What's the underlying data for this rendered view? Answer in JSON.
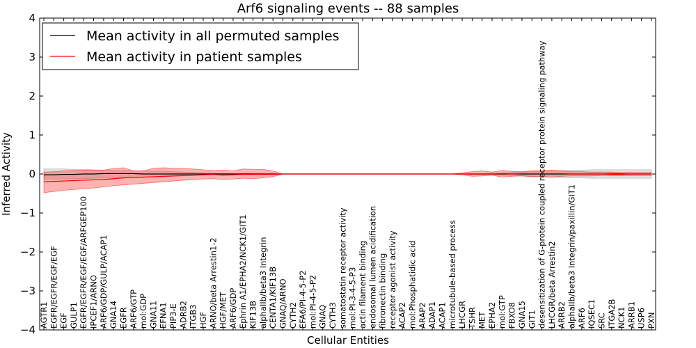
{
  "chart_data": {
    "type": "line",
    "title": "Arf6 signaling events -- 88 samples",
    "xlabel": "Cellular Entities",
    "ylabel": "Inferred Activity",
    "ylim": [
      -4,
      4
    ],
    "yticks": [
      "4",
      "3",
      "2",
      "1",
      "0",
      "−1",
      "−2",
      "−3",
      "−4"
    ],
    "grid": false,
    "legend_position": "top-left",
    "colors": {
      "permuted": "#000000",
      "patient": "#ff0000",
      "patient_band": "#ff0000",
      "permuted_band": "#aaaaaa"
    },
    "categories": [
      "AGTR1",
      "EGFR/EGFR/EGF/EGF",
      "EGF",
      "GULP1",
      "EGFR/EGFR/EGF/EGF/ARFGEP100",
      "IPCEF1/ARNO",
      "ARF6/GDP/GULP/ACAP1",
      "GNA14",
      "EGFR",
      "ARF6/GTP",
      "mol:GDP",
      "GNA11",
      "EFNA1",
      "PIP3-E",
      "ADRB2",
      "ITGB3",
      "HGF",
      "ARNO/beta Arrestin1-2",
      "HGF/MET",
      "ARF6/GDP",
      "Ephrin A1/EPHA2/NCK1/GIT1",
      "KIF13B",
      "alphaIIb/beta3 Integrin",
      "CENTA1/KIF13B",
      "GNAQ/ARNO",
      "CYTH2",
      "EFA6/PI-4-5-P2",
      "mol:PI-4-5-P2",
      "GNAQ",
      "CYTH3",
      "somatostatin receptor activity",
      "mol:PI-3-4-5-P3",
      "actin filament binding",
      "endosomal lumen acidification",
      "fibronectin binding",
      "receptor agonist activity",
      "ACAP2",
      "mol:Phosphatidic acid",
      "ARAP2",
      "ADAP1",
      "ACAP1",
      "microtubule-based process",
      "LHCGR",
      "TSHR",
      "MET",
      "EPHA2",
      "mol:GTP",
      "FBXO8",
      "GNA15",
      "GIT1",
      "desensitization of G-protein coupled receptor protein signaling pathway",
      "LHCGR/beta Arrestin2",
      "ARRB2",
      "alphaIIb/beta3 Integrin/paxillin/GIT1",
      "ARF6",
      "IQSEC1",
      "SRC",
      "ITGA2B",
      "NCK1",
      "ARRB1",
      "USP6",
      "PXN"
    ],
    "series": [
      {
        "name": "Mean activity in all permuted samples",
        "values": [
          -0.02,
          -0.02,
          -0.01,
          -0.01,
          0.0,
          0.0,
          0.01,
          0.01,
          0.01,
          0.01,
          0.0,
          0.0,
          0.0,
          0.0,
          0.0,
          0.0,
          0.0,
          0.0,
          0.0,
          0.0,
          0.0,
          0.0,
          0.0,
          0.0,
          0.0,
          0.0,
          0.0,
          0.0,
          0.0,
          0.0,
          0.0,
          0.0,
          0.0,
          0.0,
          0.0,
          0.0,
          0.0,
          0.0,
          0.0,
          0.0,
          0.0,
          0.0,
          0.0,
          0.0,
          0.0,
          0.0,
          0.0,
          0.0,
          0.0,
          0.0,
          0.0,
          0.0,
          0.0,
          0.0,
          0.0,
          0.0,
          0.0,
          0.0,
          0.0,
          0.0,
          0.0,
          0.0
        ],
        "upper": [
          0.13,
          0.13,
          0.13,
          0.12,
          0.12,
          0.11,
          0.1,
          0.09,
          0.09,
          0.08,
          0.08,
          0.07,
          0.07,
          0.06,
          0.05,
          0.04,
          0.03,
          0.02,
          0.02,
          0.01,
          0.01,
          0.01,
          0.0,
          0.0,
          0.0,
          0.0,
          0.0,
          0.0,
          0.0,
          0.0,
          0.0,
          0.0,
          0.0,
          0.0,
          0.0,
          0.0,
          0.0,
          0.0,
          0.0,
          0.0,
          0.0,
          0.0,
          0.0,
          0.01,
          0.01,
          0.02,
          0.03,
          0.04,
          0.05,
          0.06,
          0.07,
          0.08,
          0.09,
          0.1,
          0.1,
          0.11,
          0.11,
          0.11,
          0.11,
          0.11,
          0.11,
          0.11
        ],
        "lower": [
          -0.13,
          -0.13,
          -0.13,
          -0.12,
          -0.12,
          -0.11,
          -0.1,
          -0.09,
          -0.09,
          -0.08,
          -0.08,
          -0.07,
          -0.07,
          -0.06,
          -0.05,
          -0.04,
          -0.03,
          -0.02,
          -0.02,
          -0.01,
          -0.01,
          -0.01,
          0.0,
          0.0,
          0.0,
          0.0,
          0.0,
          0.0,
          0.0,
          0.0,
          0.0,
          0.0,
          0.0,
          0.0,
          0.0,
          0.0,
          0.0,
          0.0,
          0.0,
          0.0,
          0.0,
          0.0,
          0.0,
          -0.01,
          -0.01,
          -0.02,
          -0.03,
          -0.04,
          -0.05,
          -0.06,
          -0.07,
          -0.08,
          -0.09,
          -0.1,
          -0.1,
          -0.11,
          -0.11,
          -0.11,
          -0.11,
          -0.11,
          -0.11,
          -0.11
        ]
      },
      {
        "name": "Mean activity in patient samples",
        "values": [
          -0.2,
          -0.19,
          -0.18,
          -0.17,
          -0.16,
          -0.15,
          -0.14,
          -0.12,
          -0.1,
          -0.09,
          -0.08,
          -0.07,
          -0.06,
          -0.05,
          -0.04,
          -0.03,
          -0.02,
          -0.01,
          -0.03,
          -0.02,
          -0.01,
          -0.01,
          -0.01,
          -0.01,
          0.0,
          0.0,
          0.0,
          0.0,
          0.0,
          0.0,
          0.0,
          0.0,
          0.0,
          0.0,
          0.0,
          0.0,
          0.0,
          0.0,
          0.0,
          0.0,
          0.0,
          0.0,
          0.0,
          0.0,
          0.0,
          0.0,
          0.01,
          0.0,
          0.01,
          0.01,
          0.01,
          0.01,
          0.01,
          0.0,
          0.0,
          0.0,
          0.0,
          -0.01,
          -0.01,
          0.0,
          0.0,
          0.0
        ],
        "upper": [
          0.05,
          0.06,
          0.08,
          0.09,
          0.1,
          0.1,
          0.1,
          0.14,
          0.16,
          0.08,
          0.08,
          0.15,
          0.16,
          0.15,
          0.14,
          0.13,
          0.11,
          0.09,
          0.1,
          0.08,
          0.13,
          0.12,
          0.12,
          0.08,
          0.0,
          0.0,
          0.0,
          0.0,
          0.0,
          0.0,
          0.0,
          0.0,
          0.0,
          0.0,
          0.0,
          0.0,
          0.0,
          0.0,
          0.0,
          0.0,
          0.0,
          0.0,
          0.03,
          0.06,
          0.08,
          0.05,
          0.09,
          0.07,
          0.06,
          0.08,
          0.09,
          0.1,
          0.08,
          0.06,
          0.06,
          0.05,
          0.05,
          0.05,
          0.04,
          0.04,
          0.04,
          0.04
        ],
        "lower": [
          -0.48,
          -0.45,
          -0.42,
          -0.4,
          -0.38,
          -0.36,
          -0.33,
          -0.3,
          -0.28,
          -0.26,
          -0.24,
          -0.22,
          -0.2,
          -0.18,
          -0.16,
          -0.15,
          -0.13,
          -0.12,
          -0.14,
          -0.13,
          -0.11,
          -0.12,
          -0.1,
          -0.07,
          0.0,
          0.0,
          0.0,
          0.0,
          0.0,
          0.0,
          0.0,
          0.0,
          0.0,
          0.0,
          0.0,
          0.0,
          0.0,
          0.0,
          0.0,
          0.0,
          0.0,
          0.0,
          -0.02,
          -0.06,
          -0.05,
          -0.03,
          -0.08,
          -0.06,
          -0.05,
          -0.07,
          -0.07,
          -0.08,
          -0.06,
          -0.05,
          -0.05,
          -0.05,
          -0.04,
          -0.04,
          -0.04,
          -0.04,
          -0.04,
          -0.04
        ]
      }
    ]
  }
}
